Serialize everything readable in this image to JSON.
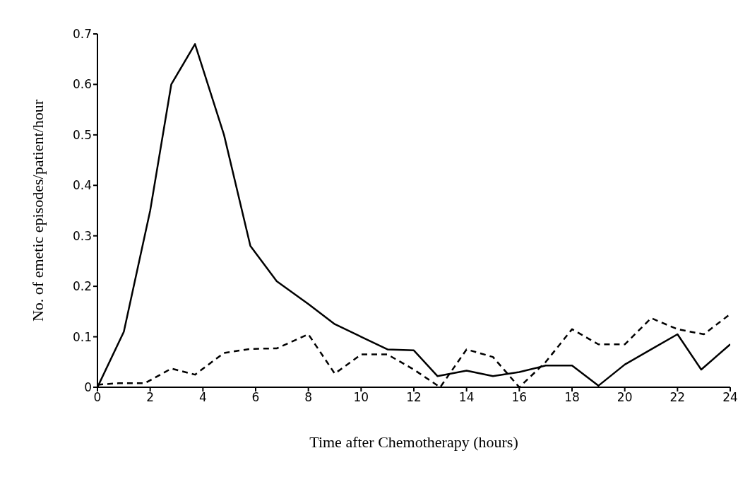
{
  "chart_data": {
    "type": "line",
    "xlabel": "Time after Chemotherapy (hours)",
    "ylabel": "No. of emetic episodes/patient/hour",
    "xlim": [
      0,
      24
    ],
    "xticks": [
      0,
      2,
      4,
      6,
      8,
      10,
      12,
      14,
      16,
      18,
      20,
      22,
      24
    ],
    "ylim": [
      0,
      0.7
    ],
    "yticks": [
      0,
      0.1,
      0.2,
      0.3,
      0.4,
      0.5,
      0.6,
      0.7
    ],
    "grid": false,
    "legend": false,
    "marker": "none",
    "series": [
      {
        "color": "#000000",
        "line_style": "solid",
        "x": [
          0,
          1,
          2,
          2.8,
          3.7,
          4.8,
          5.8,
          6.8,
          8,
          9,
          10,
          11,
          12,
          12.9,
          14,
          15,
          16,
          17,
          18,
          19,
          20,
          21,
          22,
          22.9,
          24
        ],
        "values": [
          0,
          0.11,
          0.35,
          0.6,
          0.68,
          0.5,
          0.28,
          0.21,
          0.165,
          0.125,
          0.1,
          0.075,
          0.073,
          0.022,
          0.033,
          0.022,
          0.03,
          0.043,
          0.043,
          0.003,
          0.045,
          0.075,
          0.105,
          0.035,
          0.085
        ]
      },
      {
        "color": "#000000",
        "line_style": "dashed",
        "x": [
          0,
          0.8,
          1.8,
          2.8,
          3.7,
          4.8,
          5.8,
          6.8,
          8,
          9,
          10,
          11,
          12,
          13,
          14,
          15,
          16,
          17,
          18,
          19,
          20,
          21,
          22,
          23,
          24
        ],
        "values": [
          0.005,
          0.008,
          0.008,
          0.037,
          0.025,
          0.068,
          0.076,
          0.077,
          0.105,
          0.027,
          0.065,
          0.065,
          0.035,
          0,
          0.075,
          0.06,
          0,
          0.05,
          0.115,
          0.085,
          0.085,
          0.137,
          0.115,
          0.105,
          0.145
        ]
      }
    ]
  }
}
